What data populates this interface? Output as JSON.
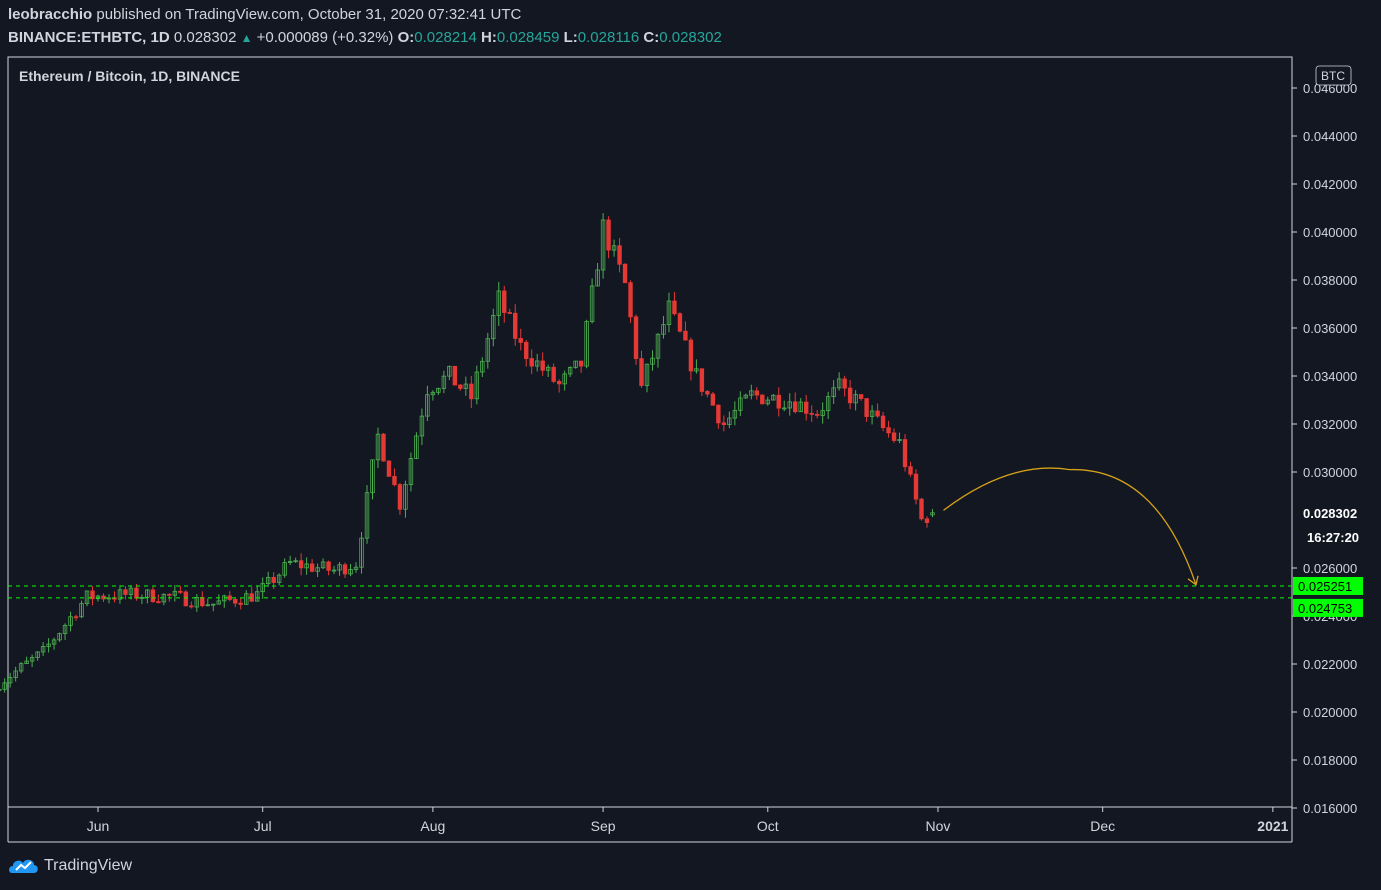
{
  "header": {
    "author": "leobracchio",
    "published_text": "published on TradingView.com, October 31, 2020 07:32:41 UTC",
    "symbol": "BINANCE:ETHBTC, 1D",
    "last": "0.028302",
    "change": "+0.000089 (+0.32%)",
    "open_label": "O:",
    "open": "0.028214",
    "high_label": "H:",
    "high": "0.028459",
    "low_label": "L:",
    "low": "0.028116",
    "close_label": "C:",
    "close": "0.028302"
  },
  "chart_title": "Ethereum / Bitcoin, 1D, BINANCE",
  "currency_badge": "BTC",
  "countdown": "16:27:20",
  "footer": {
    "brand": "TradingView"
  },
  "colors": {
    "bg": "#131722",
    "up": "#26a69a",
    "down": "#ef5350",
    "candle_up": "#4caf50",
    "candle_down": "#e53935",
    "support": "#00ff00",
    "arrow": "#d4a017"
  },
  "chart_data": {
    "type": "candlestick",
    "title": "Ethereum / Bitcoin, 1D, BINANCE",
    "y_axis": {
      "ticks": [
        "0.046000",
        "0.044000",
        "0.042000",
        "0.040000",
        "0.038000",
        "0.036000",
        "0.034000",
        "0.032000",
        "0.030000",
        "0.026000",
        "0.024000",
        "0.022000",
        "0.020000",
        "0.018000",
        "0.016000"
      ],
      "ylim": [
        0.016,
        0.0463
      ]
    },
    "x_axis": {
      "ticks": [
        "Jun",
        "Jul",
        "Aug",
        "Sep",
        "Oct",
        "Nov",
        "Dec",
        "2021"
      ]
    },
    "last_price": "0.028302",
    "support_levels": [
      {
        "label": "0.025251",
        "value": 0.025251
      },
      {
        "label": "0.024753",
        "value": 0.024753
      }
    ],
    "close_series_anchors": [
      {
        "date": "2020-05-14",
        "close": 0.0212
      },
      {
        "date": "2020-05-22",
        "close": 0.0225
      },
      {
        "date": "2020-05-30",
        "close": 0.0248
      },
      {
        "date": "2020-06-07",
        "close": 0.0249
      },
      {
        "date": "2020-06-15",
        "close": 0.0248
      },
      {
        "date": "2020-06-22",
        "close": 0.0245
      },
      {
        "date": "2020-06-30",
        "close": 0.0249
      },
      {
        "date": "2020-07-06",
        "close": 0.0262
      },
      {
        "date": "2020-07-14",
        "close": 0.0259
      },
      {
        "date": "2020-07-18",
        "close": 0.0262
      },
      {
        "date": "2020-07-22",
        "close": 0.0315
      },
      {
        "date": "2020-07-26",
        "close": 0.0287
      },
      {
        "date": "2020-07-31",
        "close": 0.0335
      },
      {
        "date": "2020-08-04",
        "close": 0.034
      },
      {
        "date": "2020-08-08",
        "close": 0.0331
      },
      {
        "date": "2020-08-13",
        "close": 0.0372
      },
      {
        "date": "2020-08-17",
        "close": 0.0352
      },
      {
        "date": "2020-08-24",
        "close": 0.0336
      },
      {
        "date": "2020-08-28",
        "close": 0.0345
      },
      {
        "date": "2020-09-01",
        "close": 0.0402
      },
      {
        "date": "2020-09-05",
        "close": 0.0378
      },
      {
        "date": "2020-09-08",
        "close": 0.0335
      },
      {
        "date": "2020-09-13",
        "close": 0.0368
      },
      {
        "date": "2020-09-18",
        "close": 0.034
      },
      {
        "date": "2020-09-23",
        "close": 0.032
      },
      {
        "date": "2020-09-28",
        "close": 0.0332
      },
      {
        "date": "2020-10-05",
        "close": 0.033
      },
      {
        "date": "2020-10-10",
        "close": 0.0325
      },
      {
        "date": "2020-10-14",
        "close": 0.0335
      },
      {
        "date": "2020-10-18",
        "close": 0.0328
      },
      {
        "date": "2020-10-22",
        "close": 0.0318
      },
      {
        "date": "2020-10-25",
        "close": 0.0312
      },
      {
        "date": "2020-10-29",
        "close": 0.028
      },
      {
        "date": "2020-10-31",
        "close": 0.028302
      }
    ],
    "peak": {
      "date": "2020-09-01",
      "high": 0.0406
    },
    "projection": {
      "from": "2020-11-02",
      "peak": 0.0301,
      "to": "2020-12-18",
      "target": 0.0253
    }
  }
}
